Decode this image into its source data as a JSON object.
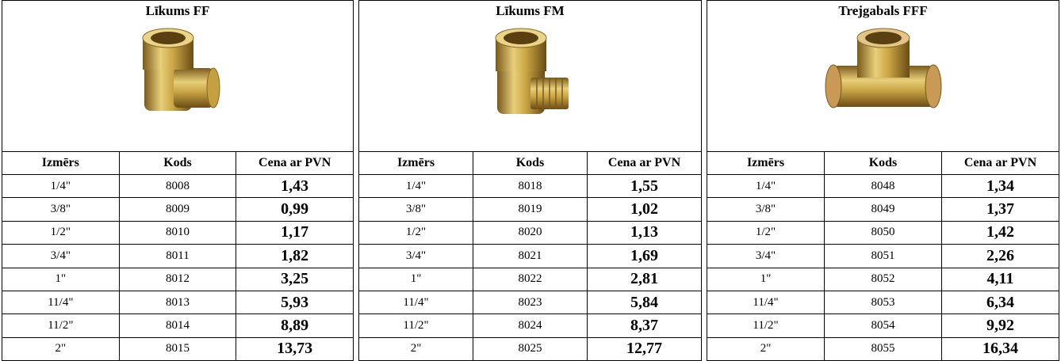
{
  "tables": [
    {
      "title": "Līkums FF",
      "headers": [
        "Izmērs",
        "Kods",
        "Cena ar PVN"
      ],
      "rows": [
        [
          "1/4\"",
          "8008",
          "1,43"
        ],
        [
          "3/8\"",
          "8009",
          "0,99"
        ],
        [
          "1/2\"",
          "8010",
          "1,17"
        ],
        [
          "3/4\"",
          "8011",
          "1,82"
        ],
        [
          "1\"",
          "8012",
          "3,25"
        ],
        [
          "11/4\"",
          "8013",
          "5,93"
        ],
        [
          "11/2\"",
          "8014",
          "8,89"
        ],
        [
          "2\"",
          "8015",
          "13,73"
        ]
      ]
    },
    {
      "title": "Līkums FM",
      "headers": [
        "Izmērs",
        "Kods",
        "Cena ar PVN"
      ],
      "rows": [
        [
          "1/4\"",
          "8018",
          "1,55"
        ],
        [
          "3/8\"",
          "8019",
          "1,02"
        ],
        [
          "1/2\"",
          "8020",
          "1,13"
        ],
        [
          "3/4\"",
          "8021",
          "1,69"
        ],
        [
          "1\"",
          "8022",
          "2,81"
        ],
        [
          "11/4\"",
          "8023",
          "5,84"
        ],
        [
          "11/2\"",
          "8024",
          "8,37"
        ],
        [
          "2\"",
          "8025",
          "12,77"
        ]
      ]
    },
    {
      "title": "Trejgabals FFF",
      "headers": [
        "Izmērs",
        "Kods",
        "Cena ar PVN"
      ],
      "rows": [
        [
          "1/4\"",
          "8048",
          "1,34"
        ],
        [
          "3/8\"",
          "8049",
          "1,37"
        ],
        [
          "1/2\"",
          "8050",
          "1,42"
        ],
        [
          "3/4\"",
          "8051",
          "2,26"
        ],
        [
          "1\"",
          "8052",
          "4,11"
        ],
        [
          "11/4\"",
          "8053",
          "6,34"
        ],
        [
          "11/2\"",
          "8054",
          "9,92"
        ],
        [
          "2\"",
          "8055",
          "16,34"
        ]
      ]
    }
  ]
}
